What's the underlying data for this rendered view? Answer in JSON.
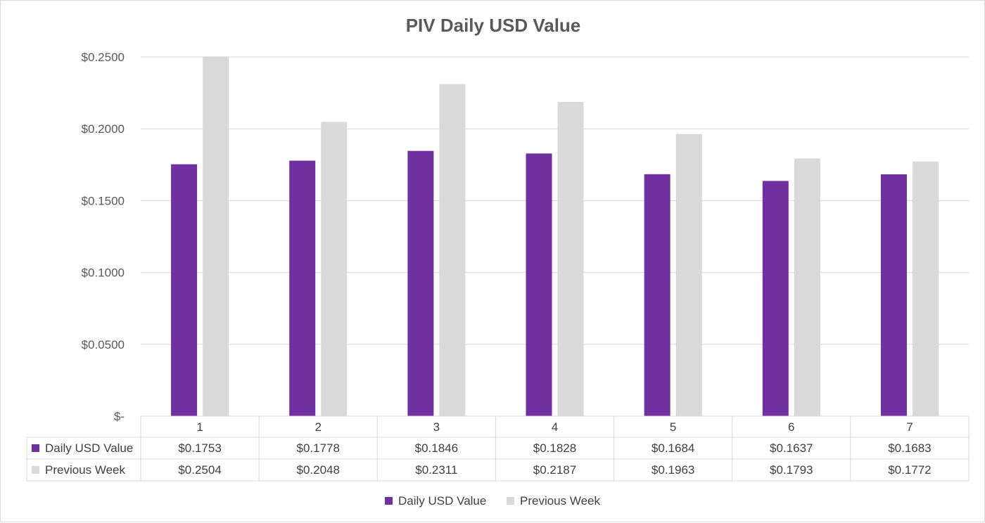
{
  "colors": {
    "series_1": "#7030a0",
    "series_2": "#d9d9d9",
    "gridline": "#d9d9d9",
    "axis_text": "#595959"
  },
  "chart_data": {
    "type": "bar",
    "title": "PIV Daily USD Value",
    "xlabel": "",
    "ylabel": "",
    "categories": [
      "1",
      "2",
      "3",
      "4",
      "5",
      "6",
      "7"
    ],
    "ylim": [
      0,
      0.25
    ],
    "yticks": [
      0,
      0.05,
      0.1,
      0.15,
      0.2,
      0.25
    ],
    "ytick_labels": [
      "$-",
      "$0.0500",
      "$0.1000",
      "$0.1500",
      "$0.2000",
      "$0.2500"
    ],
    "grid": true,
    "legend_position": "bottom",
    "series": [
      {
        "name": "Daily USD Value",
        "values": [
          0.1753,
          0.1778,
          0.1846,
          0.1828,
          0.1684,
          0.1637,
          0.1683
        ],
        "labels": [
          "$0.1753",
          "$0.1778",
          "$0.1846",
          "$0.1828",
          "$0.1684",
          "$0.1637",
          "$0.1683"
        ]
      },
      {
        "name": "Previous Week",
        "values": [
          0.2504,
          0.2048,
          0.2311,
          0.2187,
          0.1963,
          0.1793,
          0.1772
        ],
        "labels": [
          "$0.2504",
          "$0.2048",
          "$0.2311",
          "$0.2187",
          "$0.1963",
          "$0.1793",
          "$0.1772"
        ]
      }
    ]
  }
}
